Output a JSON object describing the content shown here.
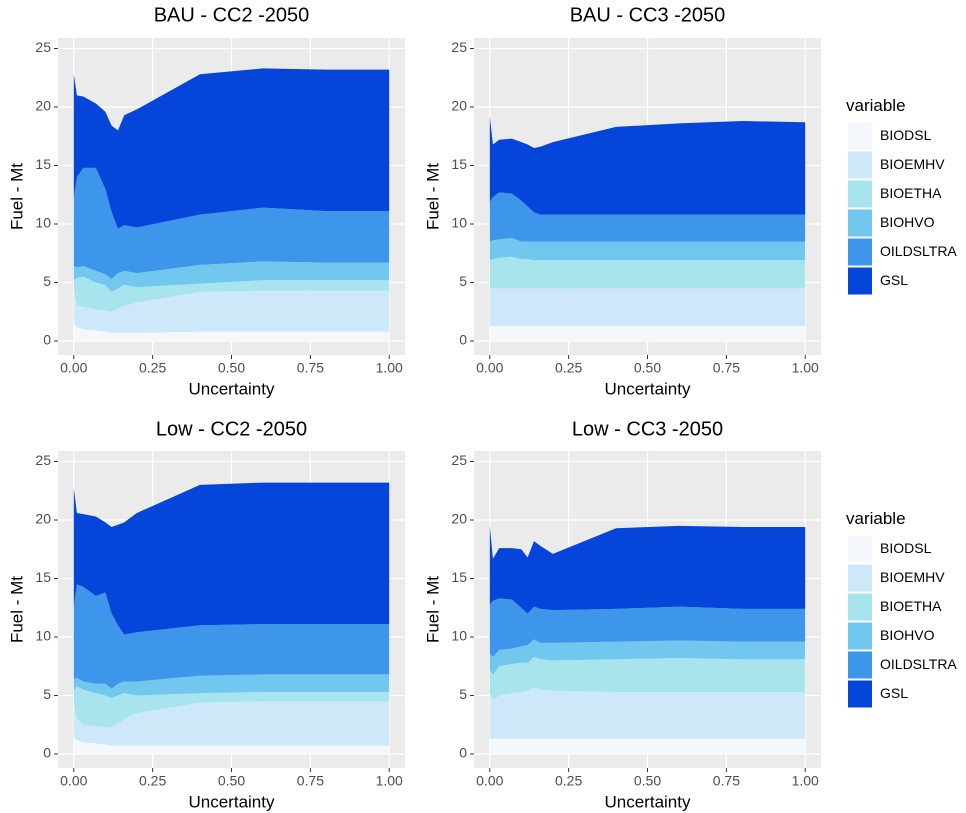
{
  "chart_data": [
    {
      "type": "area",
      "stacked": true,
      "title": "BAU - CC2 -2050",
      "xlabel": "Uncertainty",
      "ylabel": "Fuel - Mt",
      "x": [
        0,
        0.01,
        0.03,
        0.07,
        0.1,
        0.12,
        0.14,
        0.16,
        0.2,
        0.4,
        0.6,
        0.8,
        1.0
      ],
      "xlim": [
        -0.05,
        1.05
      ],
      "ylim": [
        -1.2,
        25.9
      ],
      "xticks": [
        {
          "value": 0,
          "label": "0.00"
        },
        {
          "value": 0.25,
          "label": "0.25"
        },
        {
          "value": 0.5,
          "label": "0.50"
        },
        {
          "value": 0.75,
          "label": "0.75"
        },
        {
          "value": 1,
          "label": "1.00"
        }
      ],
      "yticks": [
        0,
        5,
        10,
        15,
        20,
        25
      ],
      "grid": true,
      "series": [
        {
          "name": "BIODSL",
          "color": "#f4f8fd",
          "values": [
            1.5,
            1.2,
            1.0,
            0.9,
            0.8,
            0.7,
            0.7,
            0.7,
            0.7,
            0.8,
            0.8,
            0.8,
            0.8
          ]
        },
        {
          "name": "BIOEMHV",
          "color": "#cde8f8",
          "values": [
            3.0,
            1.8,
            1.9,
            1.8,
            1.8,
            1.8,
            2.1,
            2.3,
            2.6,
            3.4,
            3.5,
            3.5,
            3.5
          ]
        },
        {
          "name": "BIOETHA",
          "color": "#a7e4ee",
          "values": [
            0.7,
            2.4,
            2.6,
            2.3,
            2.2,
            1.7,
            1.7,
            1.8,
            1.3,
            0.7,
            0.9,
            0.9,
            0.9
          ]
        },
        {
          "name": "BIOHVO",
          "color": "#72c7ee",
          "values": [
            1.2,
            0.9,
            0.9,
            1.0,
            0.9,
            1.1,
            1.3,
            1.2,
            1.2,
            1.6,
            1.6,
            1.5,
            1.5
          ]
        },
        {
          "name": "OILDSLTRA",
          "color": "#3d96e9",
          "values": [
            5.8,
            7.7,
            8.4,
            8.8,
            7.3,
            5.7,
            3.8,
            3.9,
            3.9,
            4.3,
            4.6,
            4.4,
            4.4
          ]
        },
        {
          "name": "GSL",
          "color": "#0645d9",
          "values": [
            10.6,
            7.0,
            6.1,
            5.5,
            6.6,
            7.4,
            8.4,
            9.4,
            10.1,
            12.0,
            11.9,
            12.1,
            12.1
          ]
        }
      ]
    },
    {
      "type": "area",
      "stacked": true,
      "title": "BAU - CC3 -2050",
      "xlabel": "Uncertainty",
      "ylabel": "Fuel - Mt",
      "legend": "right",
      "legend_title": "variable",
      "x": [
        0,
        0.01,
        0.03,
        0.07,
        0.1,
        0.12,
        0.14,
        0.16,
        0.2,
        0.4,
        0.6,
        0.8,
        1.0
      ],
      "xlim": [
        -0.05,
        1.05
      ],
      "ylim": [
        -1.2,
        25.9
      ],
      "xticks": [
        {
          "value": 0,
          "label": "0.00"
        },
        {
          "value": 0.25,
          "label": "0.25"
        },
        {
          "value": 0.5,
          "label": "0.50"
        },
        {
          "value": 0.75,
          "label": "0.75"
        },
        {
          "value": 1,
          "label": "1.00"
        }
      ],
      "yticks": [
        0,
        5,
        10,
        15,
        20,
        25
      ],
      "grid": true,
      "series": [
        {
          "name": "BIODSL",
          "color": "#f4f8fd",
          "values": [
            1.3,
            1.3,
            1.3,
            1.3,
            1.3,
            1.3,
            1.3,
            1.3,
            1.3,
            1.3,
            1.3,
            1.3,
            1.3
          ]
        },
        {
          "name": "BIOEMHV",
          "color": "#cde8f8",
          "values": [
            3.2,
            3.2,
            3.2,
            3.2,
            3.2,
            3.2,
            3.2,
            3.2,
            3.2,
            3.2,
            3.2,
            3.2,
            3.2
          ]
        },
        {
          "name": "BIOETHA",
          "color": "#a7e4ee",
          "values": [
            2.4,
            2.5,
            2.6,
            2.7,
            2.5,
            2.5,
            2.4,
            2.4,
            2.4,
            2.4,
            2.4,
            2.4,
            2.4
          ]
        },
        {
          "name": "BIOHVO",
          "color": "#72c7ee",
          "values": [
            1.6,
            1.6,
            1.6,
            1.6,
            1.5,
            1.5,
            1.6,
            1.6,
            1.6,
            1.6,
            1.6,
            1.6,
            1.6
          ]
        },
        {
          "name": "OILDSLTRA",
          "color": "#3d96e9",
          "values": [
            3.4,
            3.7,
            4.0,
            3.8,
            3.5,
            3.0,
            2.5,
            2.3,
            2.3,
            2.3,
            2.3,
            2.3,
            2.3
          ]
        },
        {
          "name": "GSL",
          "color": "#0645d9",
          "values": [
            7.3,
            4.5,
            4.5,
            4.7,
            5.0,
            5.3,
            5.5,
            5.8,
            6.2,
            7.5,
            7.8,
            8.0,
            7.9
          ]
        }
      ]
    },
    {
      "type": "area",
      "stacked": true,
      "title": "Low - CC2 -2050",
      "xlabel": "Uncertainty",
      "ylabel": "Fuel - Mt",
      "x": [
        0,
        0.01,
        0.03,
        0.07,
        0.1,
        0.12,
        0.14,
        0.16,
        0.2,
        0.4,
        0.6,
        0.8,
        1.0
      ],
      "xlim": [
        -0.05,
        1.05
      ],
      "ylim": [
        -1.2,
        25.9
      ],
      "xticks": [
        {
          "value": 0,
          "label": "0.00"
        },
        {
          "value": 0.25,
          "label": "0.25"
        },
        {
          "value": 0.5,
          "label": "0.50"
        },
        {
          "value": 0.75,
          "label": "0.75"
        },
        {
          "value": 1,
          "label": "1.00"
        }
      ],
      "yticks": [
        0,
        5,
        10,
        15,
        20,
        25
      ],
      "grid": true,
      "series": [
        {
          "name": "BIODSL",
          "color": "#f4f8fd",
          "values": [
            1.4,
            1.2,
            1.0,
            0.9,
            0.8,
            0.7,
            0.7,
            0.7,
            0.7,
            0.7,
            0.7,
            0.7,
            0.7
          ]
        },
        {
          "name": "BIOEMHV",
          "color": "#cde8f8",
          "values": [
            2.8,
            1.8,
            1.5,
            1.5,
            1.5,
            1.6,
            1.9,
            2.3,
            2.8,
            3.7,
            3.8,
            3.8,
            3.8
          ]
        },
        {
          "name": "BIOETHA",
          "color": "#a7e4ee",
          "values": [
            1.2,
            2.8,
            3.0,
            2.8,
            2.7,
            2.5,
            2.4,
            2.2,
            1.5,
            0.8,
            0.8,
            0.8,
            0.8
          ]
        },
        {
          "name": "BIOHVO",
          "color": "#72c7ee",
          "values": [
            1.0,
            0.7,
            0.7,
            0.8,
            1.0,
            0.8,
            1.0,
            1.0,
            1.2,
            1.5,
            1.5,
            1.5,
            1.5
          ]
        },
        {
          "name": "OILDSLTRA",
          "color": "#3d96e9",
          "values": [
            6.1,
            8.0,
            8.1,
            7.5,
            7.8,
            6.4,
            5.0,
            4.0,
            4.2,
            4.3,
            4.3,
            4.3,
            4.3
          ]
        },
        {
          "name": "GSL",
          "color": "#0645d9",
          "values": [
            10.2,
            6.1,
            6.2,
            6.8,
            6.0,
            7.4,
            8.6,
            9.6,
            10.2,
            12.0,
            12.1,
            12.1,
            12.1
          ]
        }
      ]
    },
    {
      "type": "area",
      "stacked": true,
      "title": "Low - CC3 -2050",
      "xlabel": "Uncertainty",
      "ylabel": "Fuel - Mt",
      "legend": "right",
      "legend_title": "variable",
      "x": [
        0,
        0.01,
        0.03,
        0.07,
        0.1,
        0.12,
        0.14,
        0.16,
        0.2,
        0.4,
        0.6,
        0.8,
        1.0
      ],
      "xlim": [
        -0.05,
        1.05
      ],
      "ylim": [
        -1.2,
        25.9
      ],
      "xticks": [
        {
          "value": 0,
          "label": "0.00"
        },
        {
          "value": 0.25,
          "label": "0.25"
        },
        {
          "value": 0.5,
          "label": "0.50"
        },
        {
          "value": 0.75,
          "label": "0.75"
        },
        {
          "value": 1,
          "label": "1.00"
        }
      ],
      "yticks": [
        0,
        5,
        10,
        15,
        20,
        25
      ],
      "grid": true,
      "series": [
        {
          "name": "BIODSL",
          "color": "#f4f8fd",
          "values": [
            1.3,
            1.3,
            1.3,
            1.3,
            1.3,
            1.3,
            1.3,
            1.3,
            1.3,
            1.3,
            1.3,
            1.3,
            1.3
          ]
        },
        {
          "name": "BIOEMHV",
          "color": "#cde8f8",
          "values": [
            3.9,
            3.3,
            3.7,
            3.9,
            4.0,
            4.1,
            4.4,
            4.2,
            4.1,
            4.0,
            4.0,
            4.0,
            4.0
          ]
        },
        {
          "name": "BIOETHA",
          "color": "#a7e4ee",
          "values": [
            1.9,
            2.2,
            2.5,
            2.5,
            2.5,
            2.4,
            2.6,
            2.6,
            2.6,
            2.8,
            2.9,
            2.8,
            2.8
          ]
        },
        {
          "name": "BIOHVO",
          "color": "#72c7ee",
          "values": [
            1.5,
            1.5,
            1.4,
            1.3,
            1.4,
            1.5,
            1.5,
            1.4,
            1.5,
            1.5,
            1.5,
            1.5,
            1.5
          ]
        },
        {
          "name": "OILDSLTRA",
          "color": "#3d96e9",
          "values": [
            4.2,
            4.8,
            4.4,
            4.2,
            3.3,
            2.7,
            2.8,
            2.9,
            2.8,
            2.8,
            2.9,
            2.8,
            2.8
          ]
        },
        {
          "name": "GSL",
          "color": "#0645d9",
          "values": [
            6.7,
            3.6,
            4.3,
            4.4,
            5.0,
            4.8,
            5.6,
            5.4,
            4.8,
            6.9,
            6.9,
            7.0,
            7.0
          ]
        }
      ]
    }
  ]
}
